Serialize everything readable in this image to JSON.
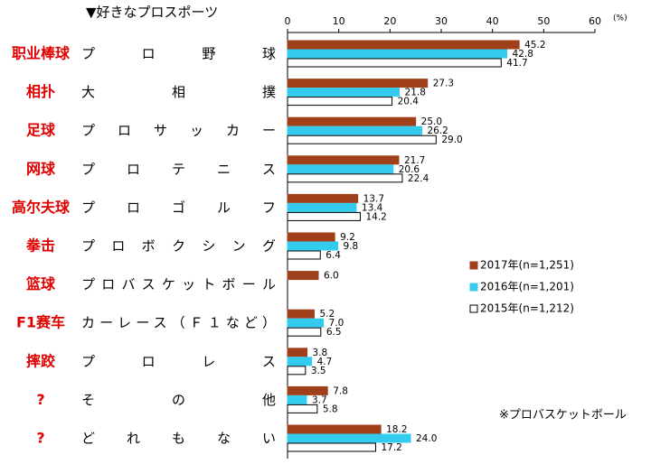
{
  "chart_data": {
    "type": "hbar",
    "title": "▼好きなプロスポーツ",
    "unit_label": "(%)",
    "categories": [
      "プロ野球",
      "大相撲",
      "プロサッカー",
      "プロテニス",
      "プロゴルフ",
      "プロボクシング",
      "プロバスケットボール",
      "カーレース（Ｆ１など）",
      "プロレス",
      "その他",
      "どれもない"
    ],
    "annotations": [
      "职业棒球",
      "相扑",
      "足球",
      "网球",
      "高尔夫球",
      "拳击",
      "篮球",
      "F1赛车",
      "摔跤",
      "?",
      "?"
    ],
    "series": [
      {
        "name": "2017年(n=1,251)",
        "color": "#a0401a",
        "values": [
          45.2,
          27.3,
          25.0,
          21.7,
          13.7,
          9.2,
          6.0,
          5.2,
          3.8,
          7.8,
          18.2
        ],
        "value_labels": [
          "45.2",
          "27.3",
          "25.0",
          "21.7",
          "13.7",
          "9.2",
          "6.0",
          "5.2",
          "3.8",
          "7.8",
          "18.2"
        ]
      },
      {
        "name": "2016年(n=1,201)",
        "color": "#33ccee",
        "values": [
          42.8,
          21.8,
          26.2,
          20.6,
          13.4,
          9.8,
          null,
          7.0,
          4.7,
          3.7,
          24.0
        ],
        "value_labels": [
          "42.8",
          "21.8",
          "26.2",
          "20.6",
          "13.4",
          "9.8",
          null,
          "7.0",
          "4.7",
          "3.7",
          "24.0"
        ]
      },
      {
        "name": "2015年(n=1,212)",
        "color": "#ffffff",
        "values": [
          41.7,
          20.4,
          29.0,
          22.4,
          14.2,
          6.4,
          null,
          6.5,
          3.5,
          5.8,
          17.2
        ],
        "value_labels": [
          "41.7",
          "20.4",
          "29.0",
          "22.4",
          "14.2",
          "6.4",
          null,
          "6.5",
          "3.5",
          "5.8",
          "17.2"
        ]
      }
    ],
    "xlim": [
      0,
      60
    ],
    "xticks": [
      0,
      10,
      20,
      30,
      40,
      50,
      60
    ],
    "legend": "right",
    "note": "※プロバスケットボール"
  }
}
